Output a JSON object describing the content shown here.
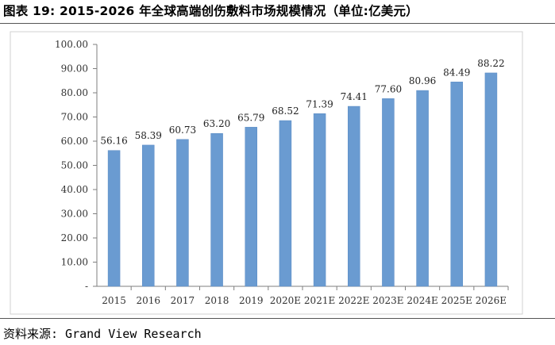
{
  "header": {
    "title": "图表 19: 2015-2026 年全球高端创伤敷料市场规模情况（单位:亿美元）"
  },
  "footer": {
    "source": "资料来源: Grand View Research"
  },
  "chart_data": {
    "type": "bar",
    "title": "",
    "xlabel": "",
    "ylabel": "",
    "categories": [
      "2015",
      "2016",
      "2017",
      "2018",
      "2019",
      "2020E",
      "2021E",
      "2022E",
      "2023E",
      "2024E",
      "2025E",
      "2026E"
    ],
    "values": [
      56.16,
      58.39,
      60.73,
      63.2,
      65.79,
      68.52,
      71.39,
      74.41,
      77.6,
      80.96,
      84.49,
      88.22
    ],
    "value_labels": [
      "56.16",
      "58.39",
      "60.73",
      "63.20",
      "65.79",
      "68.52",
      "71.39",
      "74.41",
      "77.60",
      "80.96",
      "84.49",
      "88.22"
    ],
    "yticks": [
      "-",
      "10.00",
      "20.00",
      "30.00",
      "40.00",
      "50.00",
      "60.00",
      "70.00",
      "80.00",
      "90.00",
      "100.00"
    ],
    "ylim": [
      0,
      100
    ],
    "grid": false,
    "legend": "none",
    "colors": {
      "bar": "#6a9bd1",
      "bar_stroke": "#5a8bc4",
      "axis": "#7f7f7f",
      "frame": "#d0d0d0"
    }
  }
}
